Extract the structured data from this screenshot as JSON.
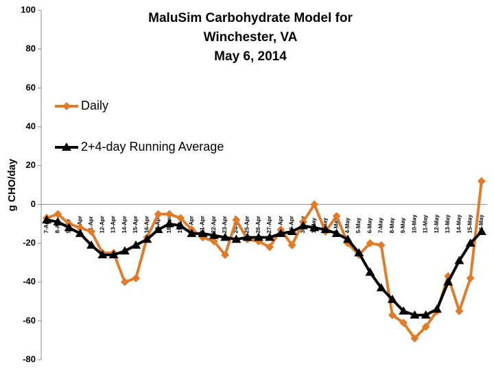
{
  "chart_data": {
    "type": "line",
    "title": [
      "MaluSim Carbohydrate Model for",
      "Winchester, VA",
      "May 6, 2014"
    ],
    "y_label": "g CHO/day",
    "categories": [
      "7-Apr",
      "8-Apr",
      "9-Apr",
      "10-Apr",
      "11-Apr",
      "12-Apr",
      "13-Apr",
      "14-Apr",
      "15-Apr",
      "16-Apr",
      "17-Apr",
      "18-Apr",
      "19-Apr",
      "20-Apr",
      "21-Apr",
      "22-Apr",
      "23-Apr",
      "24-Apr",
      "25-Apr",
      "26-Apr",
      "27-Apr",
      "28-Apr",
      "29-Apr",
      "30-Apr",
      "1-May",
      "2-May",
      "3-May",
      "4-May",
      "5-May",
      "6-May",
      "7-May",
      "8-May",
      "9-May",
      "10-May",
      "11-May",
      "12-May",
      "13-May",
      "14-May",
      "15-May",
      "16-May"
    ],
    "series": [
      {
        "name": "Daily",
        "color": "#e07b2a",
        "marker": "diamond",
        "values": [
          -7,
          -5,
          -10,
          -12,
          -14,
          -25,
          -25,
          -40,
          -38,
          -17,
          -5,
          -5,
          -7,
          -13,
          -17,
          -19,
          -26,
          -8,
          -18,
          -19,
          -22,
          -13,
          -21,
          -9,
          0,
          -14,
          -6,
          -20,
          -26,
          -20,
          -21,
          -57,
          -61,
          -69,
          -63,
          -55,
          -37,
          -55,
          -38,
          12
        ]
      },
      {
        "name": "2+4-day Running Average",
        "color": "#000000",
        "marker": "triangle",
        "values": [
          -8,
          -9,
          -12,
          -15,
          -21,
          -26,
          -26,
          -24,
          -21,
          -18,
          -13,
          -10,
          -11,
          -15,
          -15,
          -16,
          -17,
          -18,
          -17,
          -17,
          -17,
          -15,
          -14,
          -11,
          -12,
          -13,
          -15,
          -18,
          -25,
          -35,
          -43,
          -49,
          -55,
          -57,
          -57,
          -54,
          -40,
          -29,
          -20,
          -14
        ]
      }
    ],
    "ylim": [
      -80,
      100
    ],
    "yticks": [
      -80,
      -60,
      -40,
      -20,
      0,
      20,
      40,
      60,
      80,
      100
    ],
    "grid": false
  }
}
